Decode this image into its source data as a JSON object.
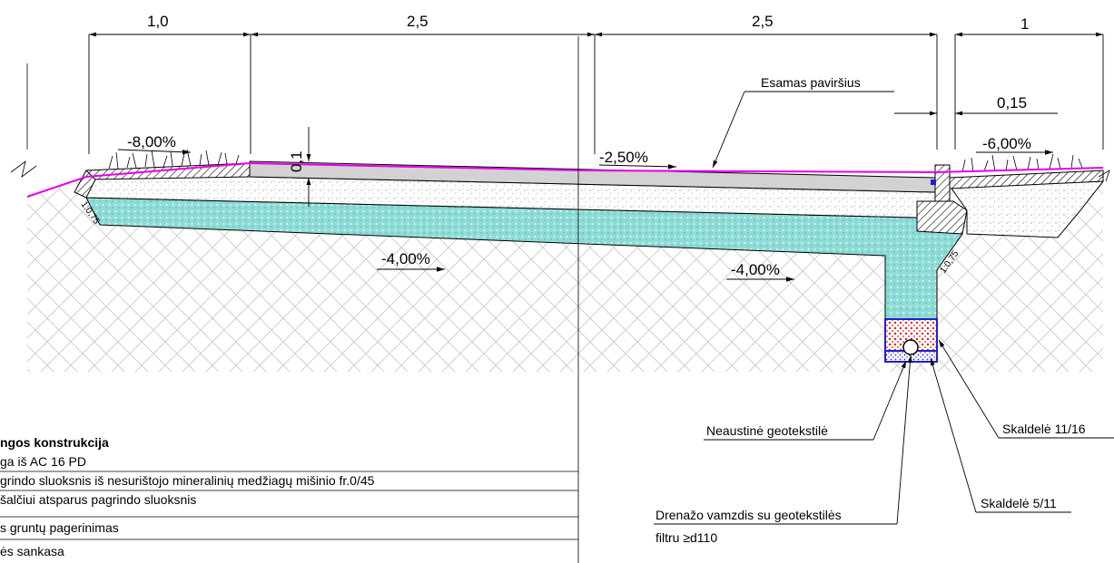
{
  "dimensions": {
    "d1": "1,0",
    "d2": "2,5",
    "d3": "2,5",
    "d4": "1",
    "d5": "0,15",
    "d6": "0,1"
  },
  "slopes": {
    "s1": "-8,00%",
    "s2": "-2,50%",
    "s3": "-6,00%",
    "s4": "-4,00%",
    "s5": "-4,00%",
    "ratio_left": "1:0,75",
    "ratio_right": "1:0,75"
  },
  "callouts": {
    "existing_surface": "Esamas paviršius",
    "geotextile": "Neaustinė geotekstilė",
    "gravel_11_16": "Skaldelė 11/16",
    "gravel_5_11": "Skaldelė 5/11",
    "drain_pipe_line1": "Drenažo vamzdis su geotekstilės",
    "drain_pipe_line2": "filtru ≥d110"
  },
  "legend": {
    "title": "ngos konstrukcija",
    "rows": [
      "ga iš AC 16 PD",
      "grindo sluoksnis iš nesurištojo mineralinių medžiagų mišinio  fr.0/45",
      "šalčiui atsparus pagrindo sluoksnis",
      "s gruntų pagerinimas",
      "ės sankasa"
    ]
  },
  "colors": {
    "asphalt": "#d2d2d2",
    "frost_layer": "#7fd6d0",
    "existing_surface_line": "#e600e6",
    "gravel_red": "#e02020",
    "gravel_blue": "#1f1fd0",
    "hatch": "#b8b8b8"
  }
}
